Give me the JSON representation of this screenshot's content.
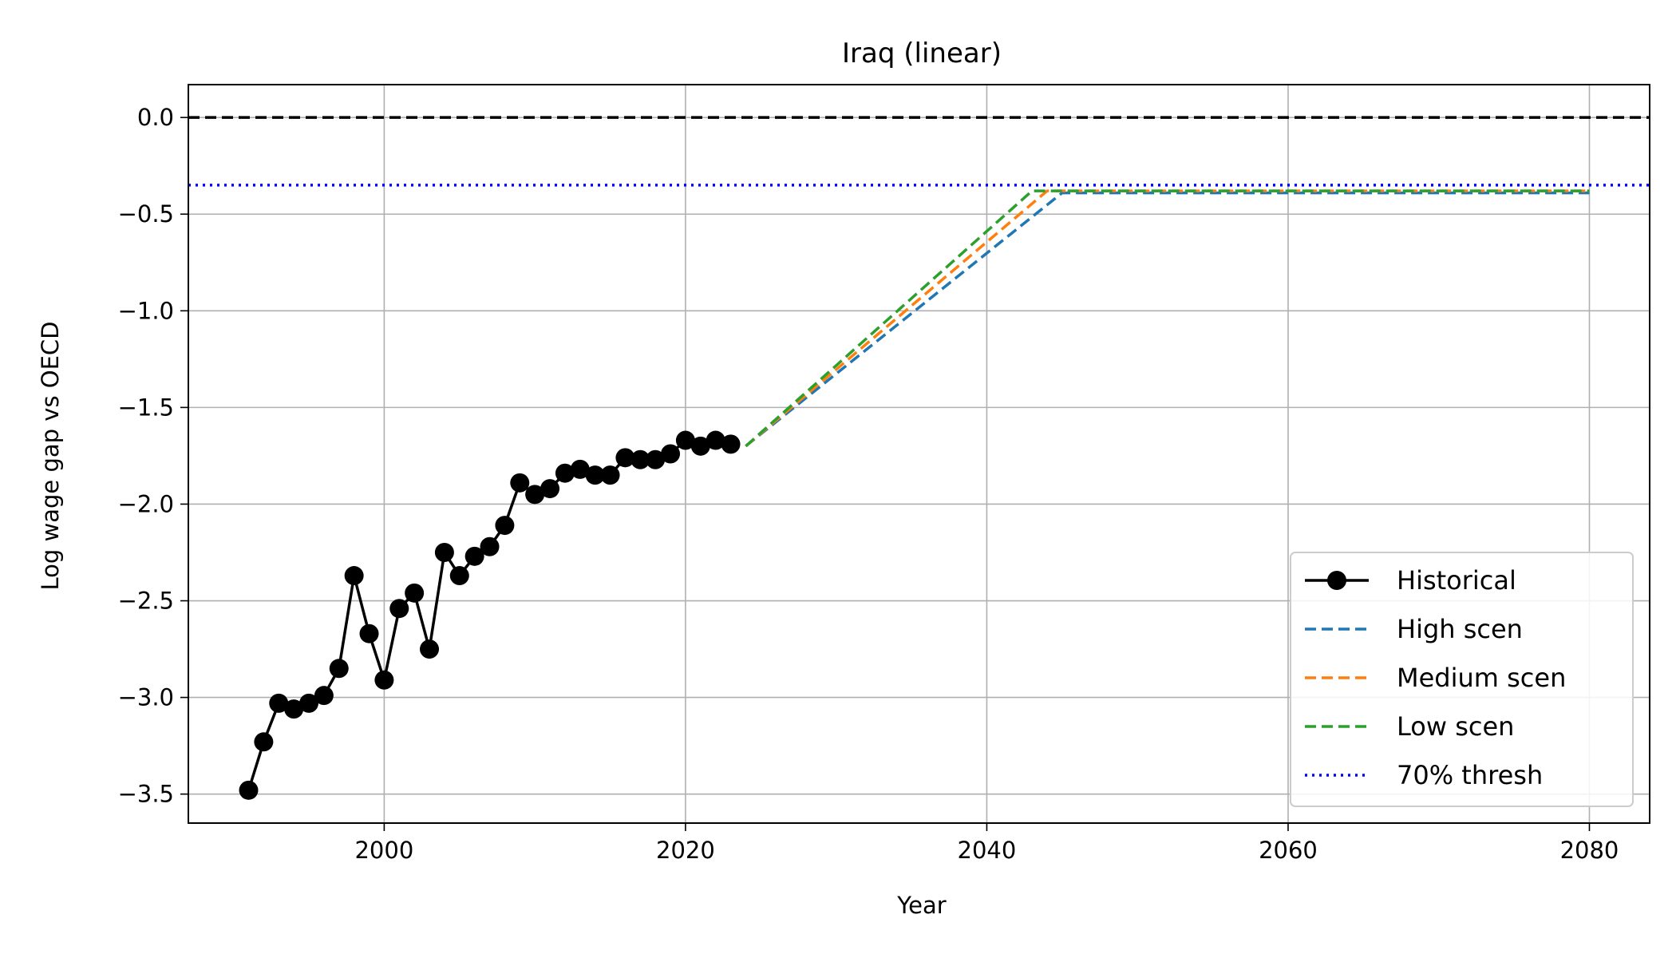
{
  "chart_data": {
    "type": "line",
    "title": "Iraq (linear)",
    "xlabel": "Year",
    "ylabel": "Log wage gap vs OECD",
    "xlim": [
      1987,
      2084
    ],
    "ylim": [
      -3.65,
      0.17
    ],
    "xticks": [
      2000,
      2020,
      2040,
      2060,
      2080
    ],
    "yticks": [
      0.0,
      -0.5,
      -1.0,
      -1.5,
      -2.0,
      -2.5,
      -3.0,
      -3.5
    ],
    "xtick_labels": [
      "2000",
      "2020",
      "2040",
      "2060",
      "2080"
    ],
    "ytick_labels": [
      "0.0",
      "−0.5",
      "−1.0",
      "−1.5",
      "−2.0",
      "−2.5",
      "−3.0",
      "−3.5"
    ],
    "grid": true,
    "legend_position": "lower-right",
    "reference_lines": [
      {
        "y": 0.0,
        "color": "#000000",
        "style": "dashed"
      },
      {
        "y": -0.35,
        "color": "#0000ff",
        "style": "dotted",
        "name": "70% thresh"
      }
    ],
    "series": [
      {
        "name": "Historical",
        "color": "#000000",
        "style": "solid-markers",
        "x": [
          1991,
          1992,
          1993,
          1994,
          1995,
          1996,
          1997,
          1998,
          1999,
          2000,
          2001,
          2002,
          2003,
          2004,
          2005,
          2006,
          2007,
          2008,
          2009,
          2010,
          2011,
          2012,
          2013,
          2014,
          2015,
          2016,
          2017,
          2018,
          2019,
          2020,
          2021,
          2022,
          2023
        ],
        "y": [
          -3.48,
          -3.23,
          -3.03,
          -3.06,
          -3.03,
          -2.99,
          -2.85,
          -2.37,
          -2.67,
          -2.91,
          -2.54,
          -2.46,
          -2.75,
          -2.25,
          -2.37,
          -2.27,
          -2.22,
          -2.11,
          -1.89,
          -1.95,
          -1.92,
          -1.84,
          -1.82,
          -1.85,
          -1.85,
          -1.76,
          -1.77,
          -1.77,
          -1.74,
          -1.67,
          -1.7,
          -1.67,
          -1.69
        ]
      },
      {
        "name": "High scen",
        "color": "#1f77b4",
        "style": "dashed",
        "x": [
          2024,
          2045,
          2080
        ],
        "y": [
          -1.7,
          -0.39,
          -0.39
        ]
      },
      {
        "name": "Medium scen",
        "color": "#ff7f0e",
        "style": "dashed",
        "x": [
          2024,
          2044,
          2080
        ],
        "y": [
          -1.7,
          -0.38,
          -0.38
        ]
      },
      {
        "name": "Low scen",
        "color": "#2ca02c",
        "style": "dashed",
        "x": [
          2024,
          2043,
          2080
        ],
        "y": [
          -1.7,
          -0.38,
          -0.38
        ]
      }
    ],
    "legend": [
      {
        "label": "Historical",
        "color": "#000000",
        "style": "solid-markers"
      },
      {
        "label": "High scen",
        "color": "#1f77b4",
        "style": "dashed"
      },
      {
        "label": "Medium scen",
        "color": "#ff7f0e",
        "style": "dashed"
      },
      {
        "label": "Low scen",
        "color": "#2ca02c",
        "style": "dashed"
      },
      {
        "label": "70% thresh",
        "color": "#0000ff",
        "style": "dotted"
      }
    ]
  }
}
